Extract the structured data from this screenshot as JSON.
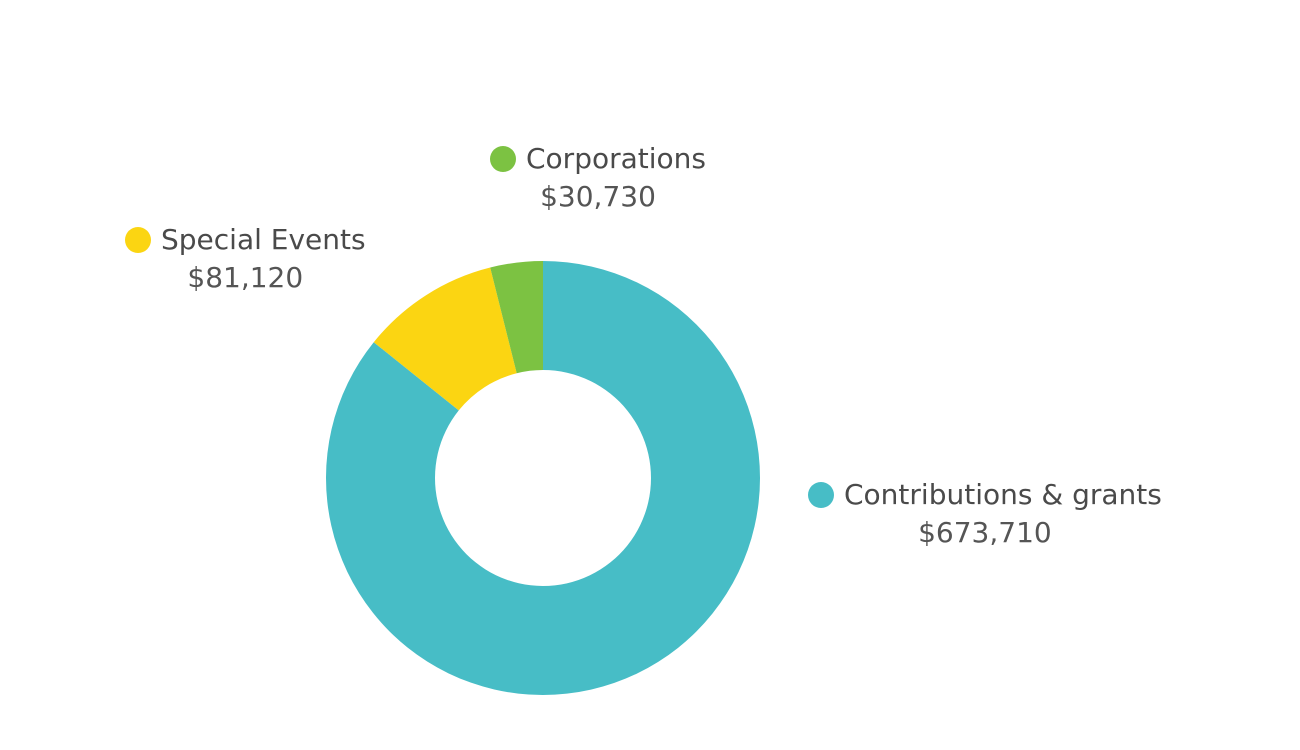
{
  "chart_data": {
    "type": "pie",
    "variant": "donut",
    "title": "",
    "slices": [
      {
        "label": "Contributions & grants",
        "value": 673710,
        "value_label": "$673,710",
        "color": "#47BDC6"
      },
      {
        "label": "Special Events",
        "value": 81120,
        "value_label": "$81,120",
        "color": "#FBD512"
      },
      {
        "label": "Corporations",
        "value": 30730,
        "value_label": "$30,730",
        "color": "#7CC242"
      }
    ],
    "legend_placement": "around"
  }
}
